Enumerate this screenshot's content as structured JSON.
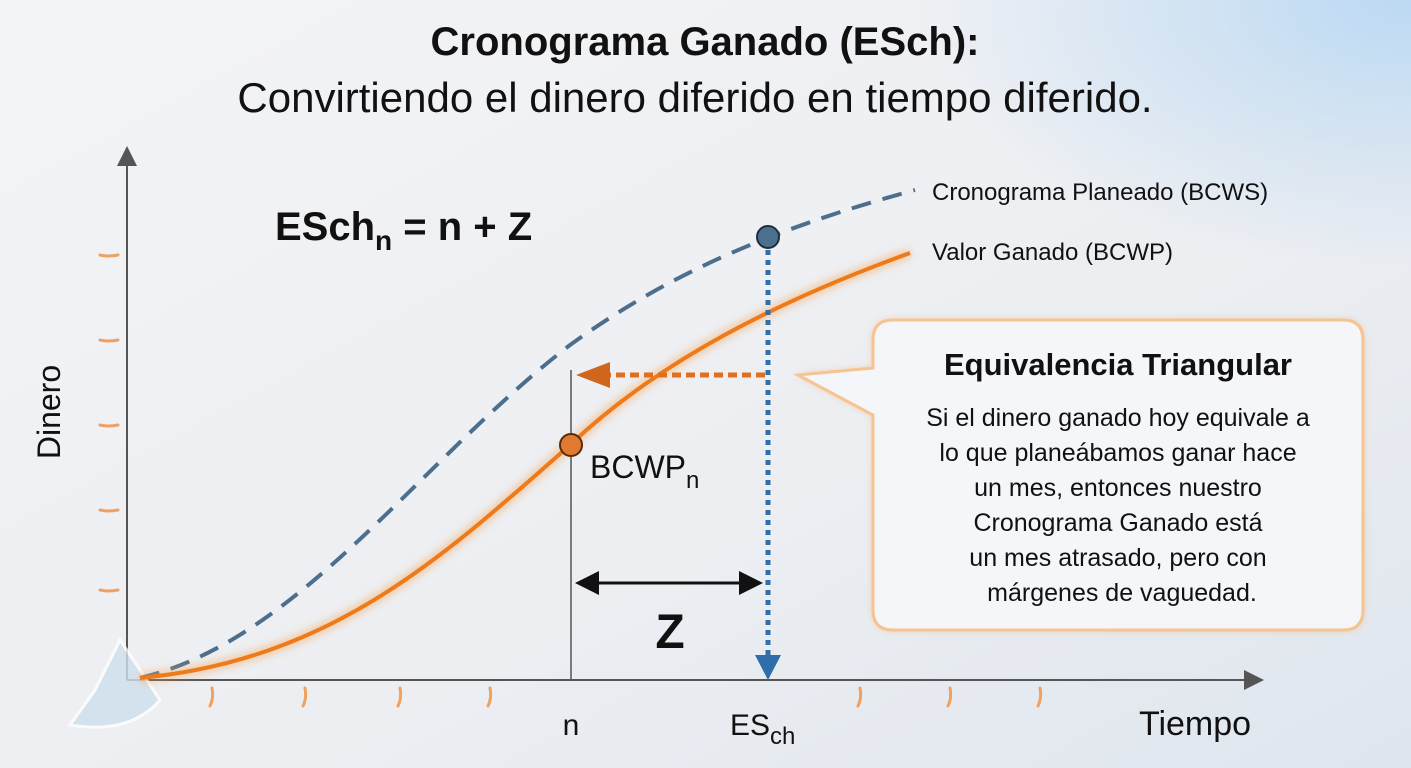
{
  "title": {
    "line1": "Cronograma Ganado (ESch):",
    "line2": "Convirtiendo el dinero diferido en tiempo diferido."
  },
  "formula": {
    "lhs": "ESch",
    "lhs_sub": "n",
    "rhs": " = n + Z"
  },
  "legend": [
    "Cronograma Planeado (BCWS)",
    "Valor Ganado (BCWP)"
  ],
  "axes": {
    "y": "Dinero",
    "x": "Tiempo"
  },
  "markers": {
    "n": "n",
    "esch": "ES",
    "esch_sub": "ch",
    "bcwp": "BCWP",
    "bcwp_sub": "n",
    "z": "Z"
  },
  "callout": {
    "title": "Equivalencia Triangular",
    "lines": [
      "Si el dinero ganado hoy equivale a",
      "lo que planeábamos ganar hace",
      "un mes, entonces nuestro",
      "Cronograma Ganado está",
      "un mes atrasado, pero con",
      "márgenes de vaguedad."
    ]
  }
}
